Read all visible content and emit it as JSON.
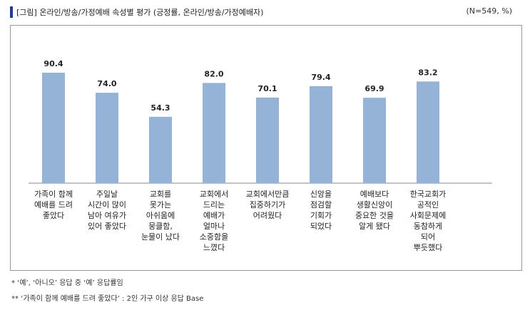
{
  "header": {
    "title": "[그림] 온라인/방송/가정예배 속성별 평가 (긍정률, 온라인/방송/가정예배자)",
    "note": "(N=549, %)"
  },
  "chart_data": {
    "type": "bar",
    "title": "[그림] 온라인/방송/가정예배 속성별 평가 (긍정률, 온라인/방송/가정예배자)",
    "categories": [
      "가족이 함께\n예배를 드려\n좋았다",
      "주일날\n시간이 많이\n남아 여유가\n있어 좋았다",
      "교회를\n못가는\n아쉬움에\n뭉클함,\n눈물이 났다",
      "교회에서\n드리는\n예배가\n얼마나\n소중함을\n느꼈다",
      "교회에서만큼\n집중하기가\n어려웠다",
      "신앙을\n점검할\n기회가\n되었다",
      "예배보다\n생활신앙이\n중요한 것을\n알게 됐다",
      "한국교회가\n공적인\n사회문제에\n동참하게\n되어\n뿌듯했다"
    ],
    "values": [
      90.4,
      74.0,
      54.3,
      82.0,
      70.1,
      79.4,
      69.9,
      83.2
    ],
    "value_labels": [
      "90.4",
      "74.0",
      "54.3",
      "82.0",
      "70.1",
      "79.4",
      "69.9",
      "83.2"
    ],
    "bar_color": "#95b3d7",
    "ylim": [
      0,
      100
    ],
    "grid": false,
    "legend": "none"
  },
  "footnotes": [
    "* ‘예’, ‘아니오’ 응답 중 ‘예’ 응답률임",
    "** ‘가족이 함께 예배를 드려 좋았다’ : 2인 가구 이상 응답 Base"
  ],
  "colors": {
    "accent": "#1f3f8f",
    "bar": "#95b3d7",
    "frame": "#9a9a9a"
  }
}
